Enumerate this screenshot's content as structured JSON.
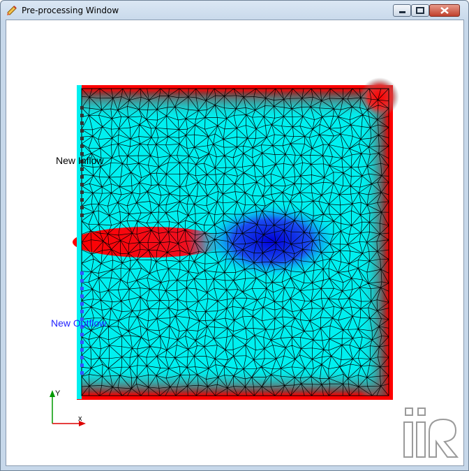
{
  "window": {
    "title": "Pre-processing Window",
    "icon": "pencil-icon",
    "buttons": [
      "minimize-icon",
      "maximize-icon",
      "close-icon"
    ]
  },
  "boundaries": {
    "inflow_label": "New Inflow",
    "outflow_label": "New Outflow"
  },
  "axes": {
    "x_label": "x",
    "y_label": "Y"
  },
  "logo": {
    "text": "iRIC"
  },
  "colors": {
    "mesh_fill": "#00f0f0",
    "boundary_red": "#ff0000",
    "deep_blue": "#0000e0",
    "inflow_marker": "#333333",
    "outflow_marker": "#3355ff",
    "inflow_text": "#000000",
    "outflow_text": "#2222ff",
    "axis_x": "#dd0000",
    "axis_y": "#009900"
  }
}
